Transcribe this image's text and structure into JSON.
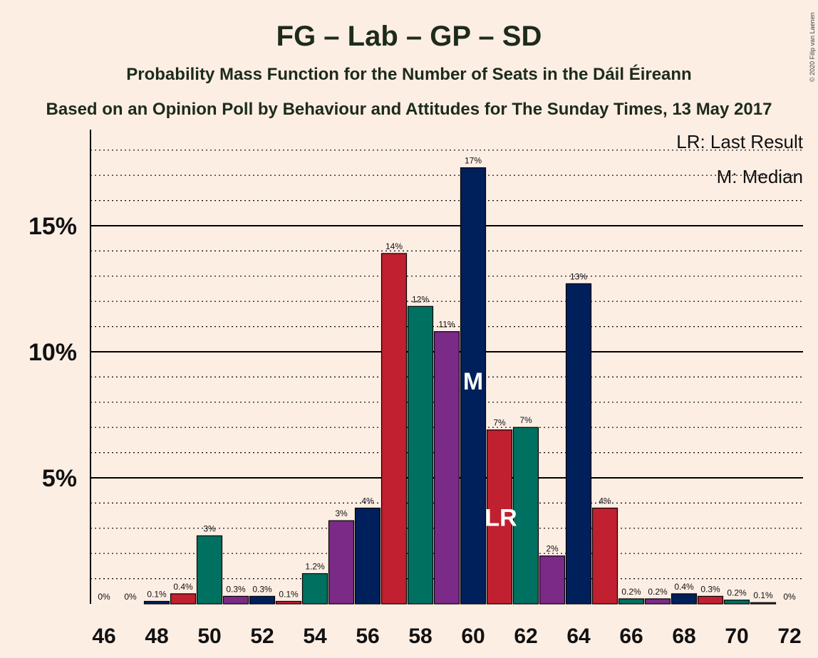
{
  "title": "FG – Lab – GP – SD",
  "subtitle1": "Probability Mass Function for the Number of Seats in the Dáil Éireann",
  "subtitle2": "Based on an Opinion Poll by Behaviour and Attitudes for The Sunday Times, 13 May 2017",
  "copyright": "© 2020 Filip van Laenen",
  "legend": {
    "last_result": "LR: Last Result",
    "median": "M: Median"
  },
  "markers": {
    "median_text": "M",
    "median_seat": 60,
    "last_result_text": "LR",
    "last_result_seat": 61
  },
  "colors": {
    "background": "#fdeee4",
    "red": "#c0202f",
    "green": "#007060",
    "purple": "#7b2a88",
    "navy": "#00205b"
  },
  "chart_data": {
    "type": "bar",
    "x": [
      46,
      47,
      48,
      49,
      50,
      51,
      52,
      53,
      54,
      55,
      56,
      57,
      58,
      59,
      60,
      61,
      62,
      63,
      64,
      65,
      66,
      67,
      68,
      69,
      70,
      71,
      72
    ],
    "values": [
      0,
      0,
      0.1,
      0.4,
      2.7,
      0.3,
      0.3,
      0.1,
      1.2,
      3.3,
      3.8,
      13.9,
      11.8,
      10.8,
      17.3,
      6.9,
      7.0,
      1.9,
      12.7,
      3.8,
      0.2,
      0.2,
      0.4,
      0.3,
      0.15,
      0.05,
      0
    ],
    "data_labels": [
      "0%",
      "0%",
      "0.1%",
      "0.4%",
      "3%",
      "0.3%",
      "0.3%",
      "0.1%",
      "1.2%",
      "3%",
      "4%",
      "14%",
      "12%",
      "11%",
      "17%",
      "7%",
      "7%",
      "2%",
      "13%",
      "4%",
      "0.2%",
      "0.2%",
      "0.4%",
      "0.3%",
      "0.2%",
      "0.1%",
      "0%"
    ],
    "bar_colors": [
      "navy",
      "red",
      "navy",
      "red",
      "green",
      "purple",
      "navy",
      "red",
      "green",
      "purple",
      "navy",
      "red",
      "green",
      "purple",
      "navy",
      "red",
      "green",
      "purple",
      "navy",
      "red",
      "green",
      "purple",
      "navy",
      "red",
      "green",
      "purple",
      "navy"
    ],
    "x_tick_labels": [
      "46",
      "48",
      "50",
      "52",
      "54",
      "56",
      "58",
      "60",
      "62",
      "64",
      "66",
      "68",
      "70",
      "72"
    ],
    "y_tick_labels": [
      "5%",
      "10%",
      "15%"
    ],
    "y_ticks": [
      5,
      10,
      15
    ],
    "ylim": [
      0,
      18.8
    ],
    "grid": "dotted every 1%, solid every 5%"
  }
}
